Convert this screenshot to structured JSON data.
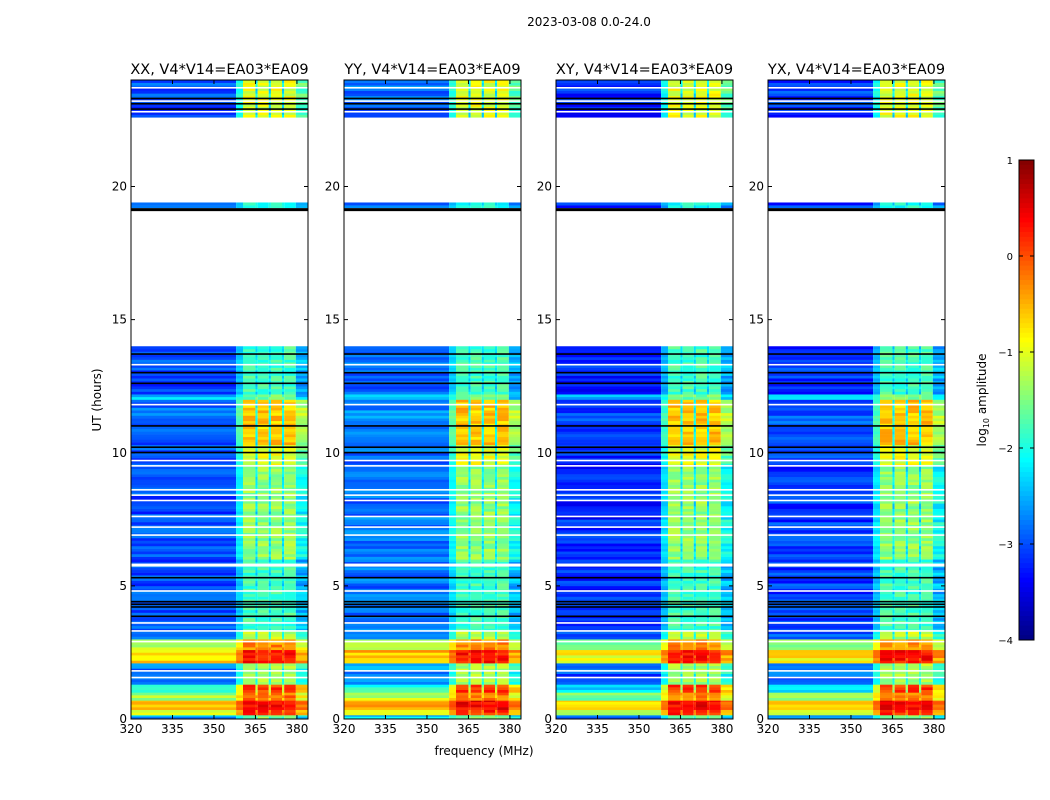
{
  "chart_data": {
    "type": "heatmap",
    "title": "2023-03-08 0.0-24.0",
    "xlabel": "frequency (MHz)",
    "ylabel": "UT (hours)",
    "xlim": [
      320,
      384
    ],
    "ylim": [
      0,
      24
    ],
    "xticks": [
      320,
      335,
      350,
      365,
      380
    ],
    "yticks": [
      0,
      5,
      10,
      15,
      20
    ],
    "panels": [
      {
        "title": "XX, V4*V14=EA03*EA09",
        "bg_offset": 0.0
      },
      {
        "title": "YY, V4*V14=EA03*EA09",
        "bg_offset": 0.15
      },
      {
        "title": "XY, V4*V14=EA03*EA09",
        "bg_offset": -0.2
      },
      {
        "title": "YX, V4*V14=EA03*EA09",
        "bg_offset": -0.1
      }
    ],
    "band_columns_mhz": [
      [
        360.5,
        365
      ],
      [
        365.8,
        369.8
      ],
      [
        370.6,
        374.6
      ],
      [
        375.4,
        379.6
      ]
    ],
    "segments_hours_bg_band": [
      [
        0.0,
        0.15,
        -2.5,
        -1.5
      ],
      [
        0.15,
        0.35,
        -1.0,
        0.2
      ],
      [
        0.35,
        0.7,
        -0.7,
        0.4
      ],
      [
        0.7,
        1.0,
        -1.3,
        -0.2
      ],
      [
        1.0,
        1.3,
        -2.0,
        0.1
      ],
      [
        1.3,
        2.1,
        -2.8,
        -1.3
      ],
      [
        2.1,
        2.6,
        -0.7,
        0.3
      ],
      [
        2.6,
        3.0,
        -1.2,
        -0.3
      ],
      [
        3.0,
        3.3,
        -2.8,
        -1.2
      ],
      [
        3.3,
        6.0,
        -3.0,
        -1.8
      ],
      [
        6.0,
        9.5,
        -3.0,
        -1.4
      ],
      [
        9.5,
        10.3,
        -3.0,
        -1.0
      ],
      [
        10.3,
        12.0,
        -2.9,
        -0.6
      ],
      [
        12.0,
        12.2,
        -2.3,
        -1.6
      ],
      [
        12.2,
        14.0,
        -3.0,
        -1.8
      ],
      [
        19.2,
        19.4,
        -3.0,
        -2.0
      ],
      [
        22.6,
        24.0,
        -3.0,
        -1.0
      ]
    ],
    "flagged_white_hours": [
      1.55,
      1.8,
      2.9,
      3.3,
      3.6,
      4.8,
      5.8,
      6.9,
      7.2,
      7.6,
      8.2,
      8.4,
      8.6,
      9.5,
      9.7,
      11.8,
      13.3,
      22.8,
      23.2,
      23.7
    ],
    "flagged_black_hours": [
      3.85,
      4.2,
      4.3,
      4.4,
      5.3,
      10.0,
      10.2,
      11.0,
      12.6,
      13.0,
      13.7,
      19.15,
      22.9,
      23.1,
      23.3
    ],
    "colorbar": {
      "label": "log10 amplitude",
      "label_main": "log",
      "label_sub": "10",
      "label_rest": " amplitude",
      "range": [
        -4,
        1
      ],
      "ticks": [
        1,
        0,
        -1,
        -2,
        -3,
        -4
      ],
      "tick_labels": [
        "1",
        "0",
        "−1",
        "−2",
        "−3",
        "−4"
      ],
      "colormap": "jet"
    }
  }
}
